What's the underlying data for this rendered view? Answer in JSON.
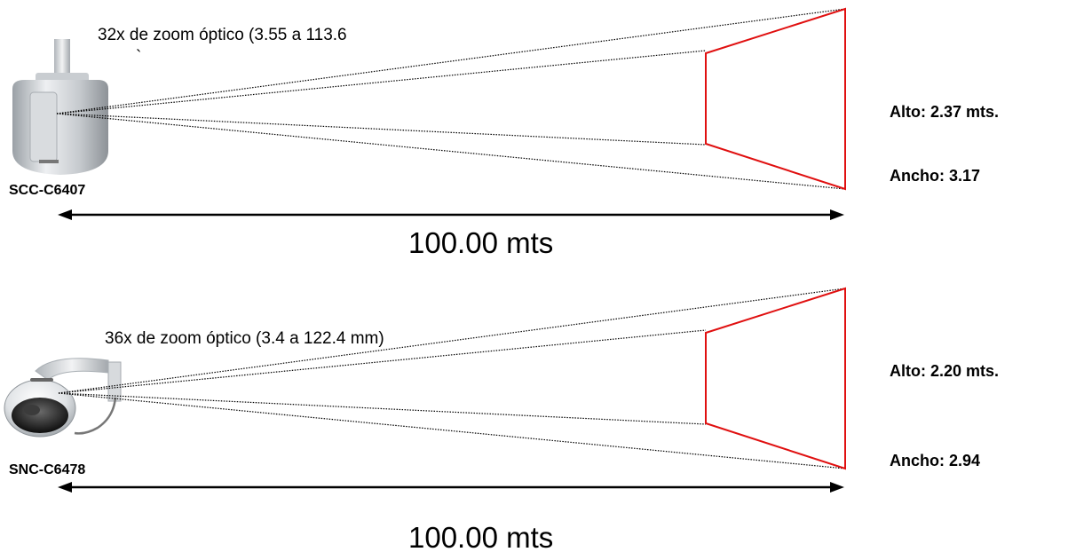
{
  "cameras": [
    {
      "model": "SCC-C6407",
      "zoom_text": "32x de zoom óptico (3.55 a 113.6",
      "tick_mark": "`",
      "alto": "Alto: 2.37 mts.",
      "ancho": "Ancho: 3.17",
      "distance": "100.00 mts",
      "image_icon": "dome-camera-ceiling-mount-icon"
    },
    {
      "model": "SNC-C6478",
      "zoom_text": "36x de zoom óptico (3.4 a 122.4 mm)",
      "alto": "Alto: 2.20 mts.",
      "ancho": "Ancho: 2.94",
      "distance": "100.00 mts",
      "image_icon": "dome-camera-wall-mount-icon"
    }
  ],
  "colors": {
    "frame": "#e01010",
    "rays": "#000000"
  }
}
